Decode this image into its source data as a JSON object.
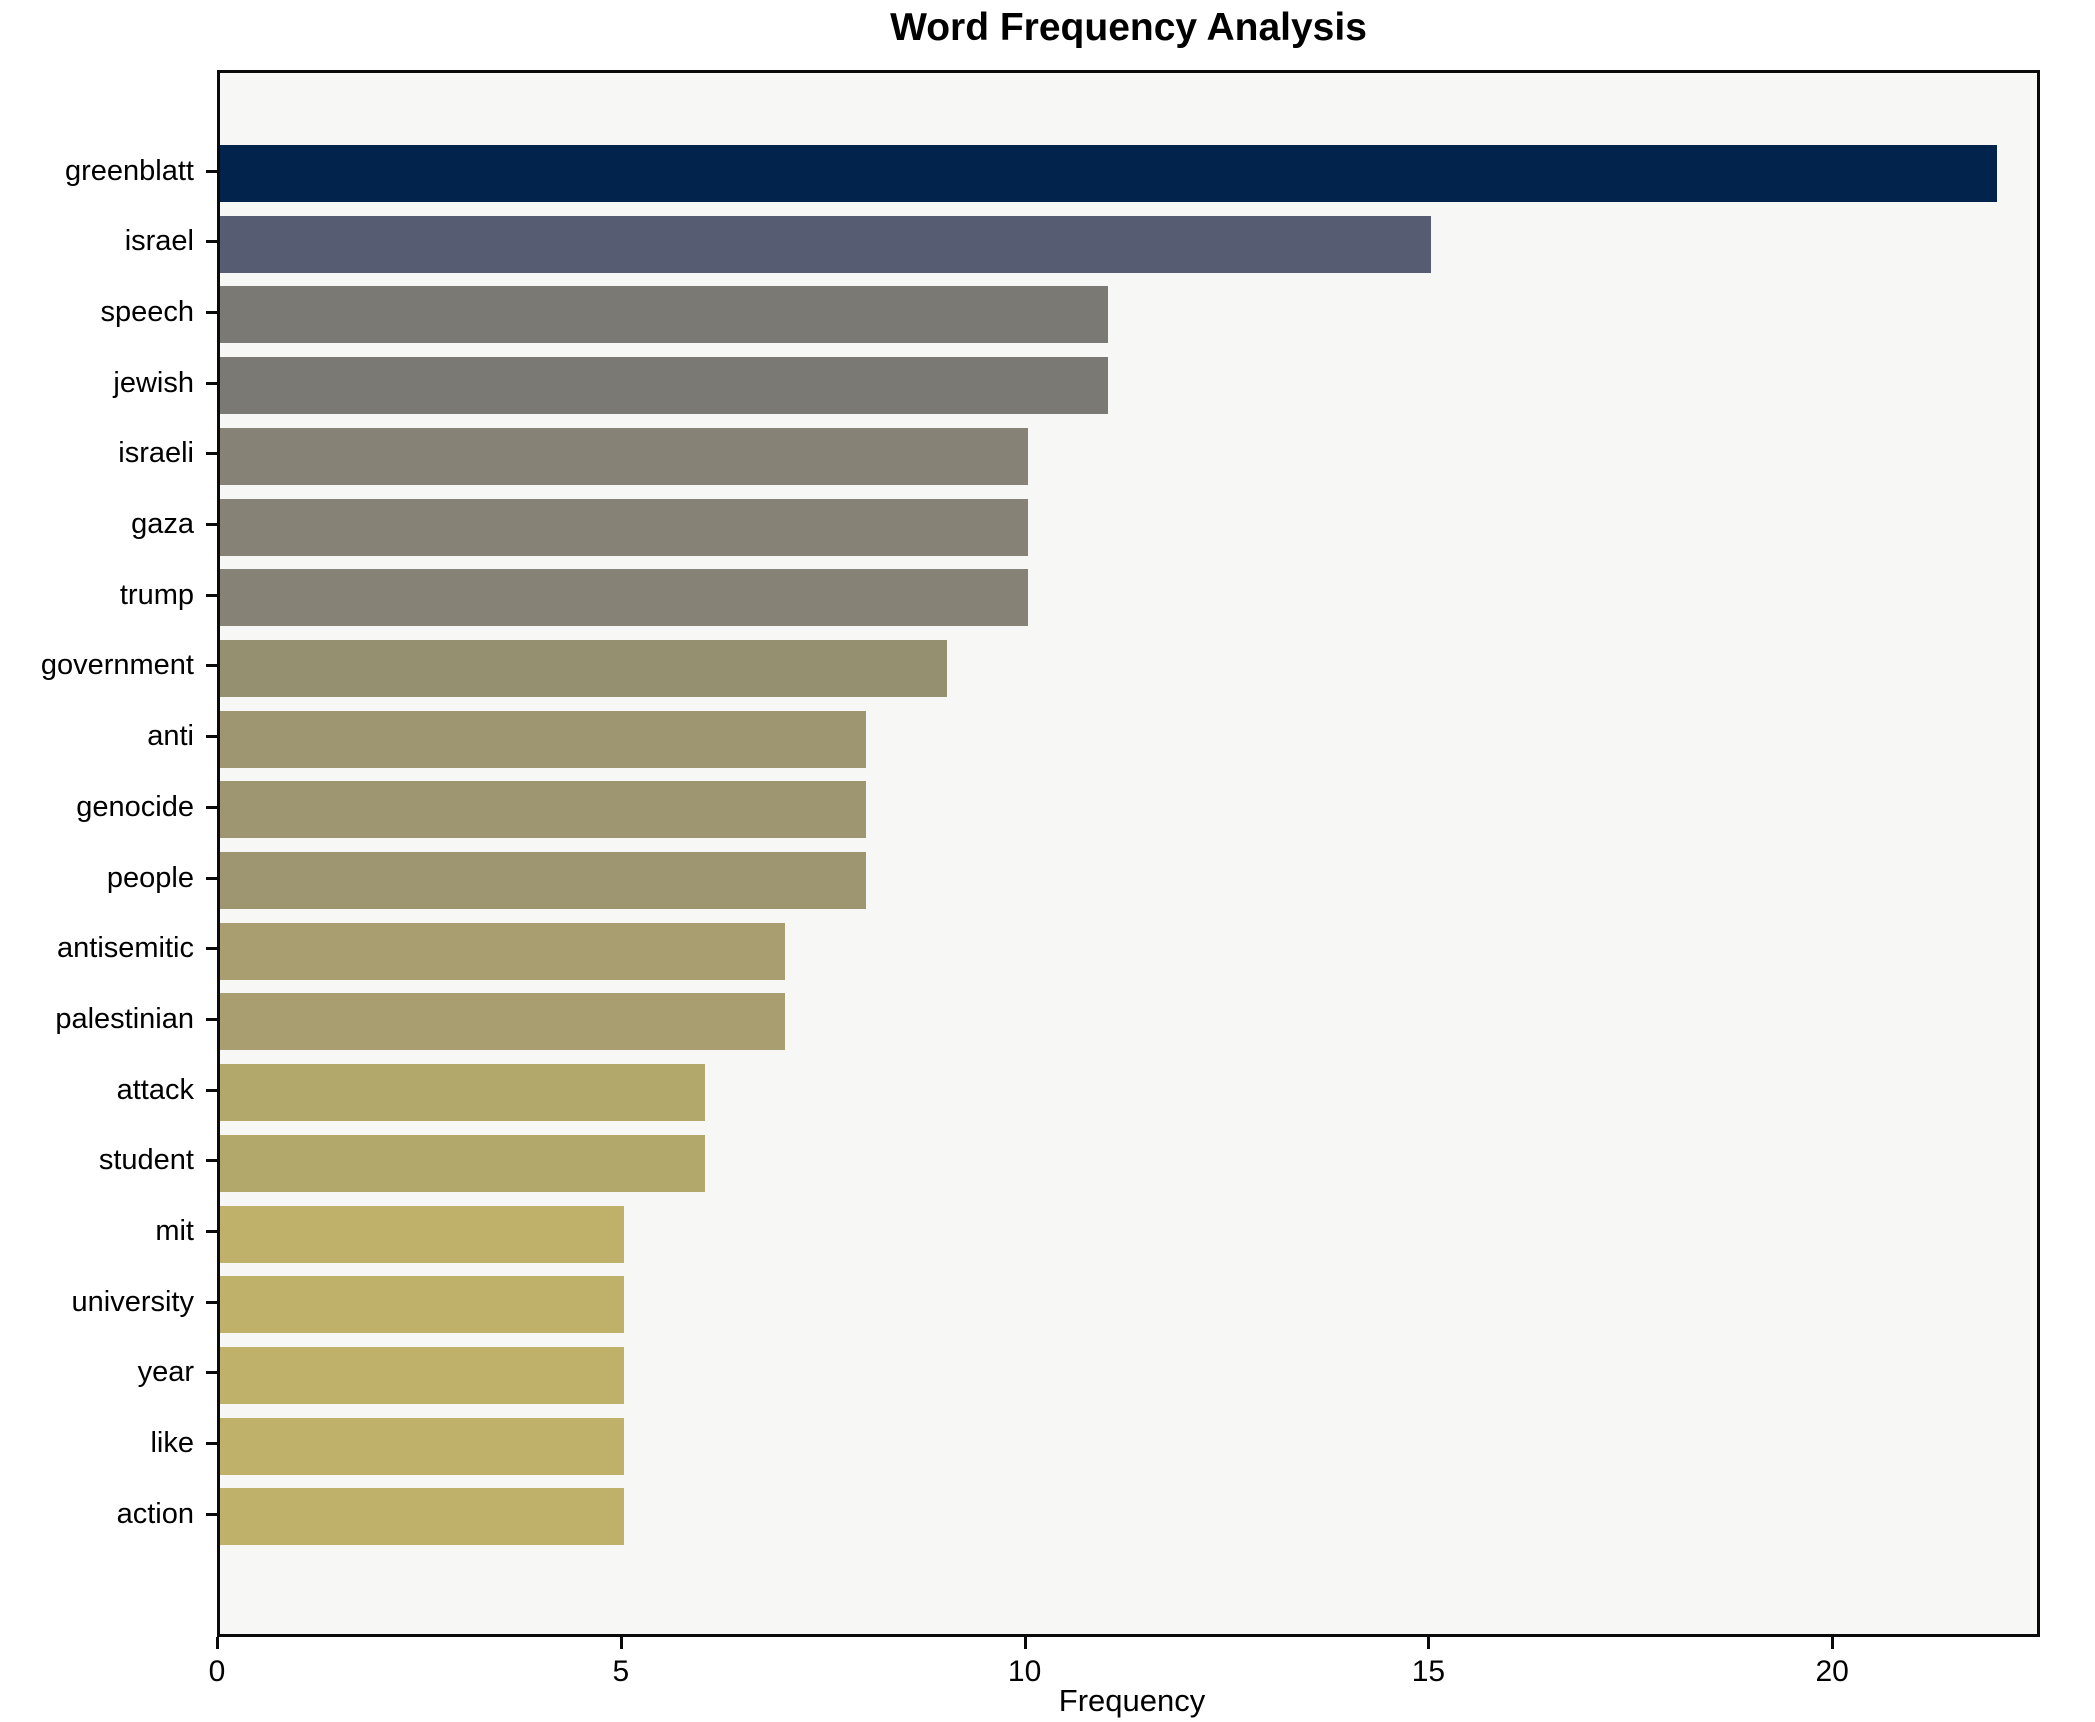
{
  "chart_data": {
    "type": "bar",
    "orientation": "horizontal",
    "title": "Word Frequency Analysis",
    "xlabel": "Frequency",
    "ylabel": "",
    "categories": [
      "greenblatt",
      "israel",
      "speech",
      "jewish",
      "israeli",
      "gaza",
      "trump",
      "government",
      "anti",
      "genocide",
      "people",
      "antisemitic",
      "palestinian",
      "attack",
      "student",
      "mit",
      "university",
      "year",
      "like",
      "action"
    ],
    "values": [
      22,
      15,
      11,
      11,
      10,
      10,
      10,
      9,
      8,
      8,
      8,
      7,
      7,
      6,
      6,
      5,
      5,
      5,
      5,
      5
    ],
    "bar_colors": [
      "#02234c",
      "#565d72",
      "#7a7973",
      "#7a7973",
      "#868275",
      "#868275",
      "#868275",
      "#959070",
      "#9e9671",
      "#9e9671",
      "#9e9671",
      "#a89e6f",
      "#a89e6f",
      "#b2a86b",
      "#b2a86b",
      "#bfb169",
      "#bfb169",
      "#bfb169",
      "#bfb169",
      "#bfb169"
    ],
    "xlim": [
      0,
      22.4
    ],
    "xticks": [
      0,
      5,
      10,
      15,
      20
    ],
    "grid": false,
    "legend": null,
    "plot_background": "#f7f7f5",
    "figure_background": "#ffffff",
    "axis_color": "#0a0a0a"
  }
}
